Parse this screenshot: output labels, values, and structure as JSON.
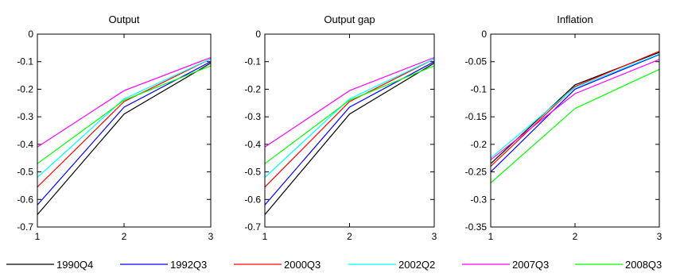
{
  "chart_data": [
    {
      "type": "line",
      "title": "Output",
      "xlabel": "",
      "ylabel": "",
      "x": [
        1,
        2,
        3
      ],
      "xlim": [
        1,
        3
      ],
      "xticks": [
        "1",
        "2",
        "3"
      ],
      "ylim": [
        -0.7,
        0
      ],
      "yticks": [
        "0",
        "-0.1",
        "-0.2",
        "-0.3",
        "-0.4",
        "-0.5",
        "-0.6",
        "-0.7"
      ],
      "grid": false,
      "series": [
        {
          "name": "1990Q4",
          "color": "#000000",
          "values": [
            -0.655,
            -0.29,
            -0.105
          ]
        },
        {
          "name": "1992Q3",
          "color": "#0000ff",
          "values": [
            -0.62,
            -0.265,
            -0.1
          ]
        },
        {
          "name": "2000Q3",
          "color": "#ff0000",
          "values": [
            -0.555,
            -0.245,
            -0.09
          ]
        },
        {
          "name": "2002Q2",
          "color": "#00ffff",
          "values": [
            -0.52,
            -0.235,
            -0.09
          ]
        },
        {
          "name": "2007Q3",
          "color": "#ff00ff",
          "values": [
            -0.41,
            -0.205,
            -0.085
          ]
        },
        {
          "name": "2008Q3",
          "color": "#00ff00",
          "values": [
            -0.47,
            -0.24,
            -0.115
          ]
        }
      ]
    },
    {
      "type": "line",
      "title": "Output gap",
      "xlabel": "",
      "ylabel": "",
      "x": [
        1,
        2,
        3
      ],
      "xlim": [
        1,
        3
      ],
      "xticks": [
        "1",
        "2",
        "3"
      ],
      "ylim": [
        -0.7,
        0
      ],
      "yticks": [
        "0",
        "-0.1",
        "-0.2",
        "-0.3",
        "-0.4",
        "-0.5",
        "-0.6",
        "-0.7"
      ],
      "grid": false,
      "series": [
        {
          "name": "1990Q4",
          "color": "#000000",
          "values": [
            -0.655,
            -0.29,
            -0.105
          ]
        },
        {
          "name": "1992Q3",
          "color": "#0000ff",
          "values": [
            -0.62,
            -0.265,
            -0.1
          ]
        },
        {
          "name": "2000Q3",
          "color": "#ff0000",
          "values": [
            -0.555,
            -0.245,
            -0.09
          ]
        },
        {
          "name": "2002Q2",
          "color": "#00ffff",
          "values": [
            -0.52,
            -0.235,
            -0.09
          ]
        },
        {
          "name": "2007Q3",
          "color": "#ff00ff",
          "values": [
            -0.41,
            -0.205,
            -0.085
          ]
        },
        {
          "name": "2008Q3",
          "color": "#00ff00",
          "values": [
            -0.47,
            -0.24,
            -0.115
          ]
        }
      ]
    },
    {
      "type": "line",
      "title": "Inflation",
      "xlabel": "",
      "ylabel": "",
      "x": [
        1,
        2,
        3
      ],
      "xlim": [
        1,
        3
      ],
      "xticks": [
        "1",
        "2",
        "3"
      ],
      "ylim": [
        -0.35,
        0
      ],
      "yticks": [
        "0",
        "-0.05",
        "-0.1",
        "-0.15",
        "-0.2",
        "-0.25",
        "-0.3",
        "-0.35"
      ],
      "grid": false,
      "series": [
        {
          "name": "1990Q4",
          "color": "#000000",
          "values": [
            -0.235,
            -0.092,
            -0.033
          ]
        },
        {
          "name": "1992Q3",
          "color": "#0000ff",
          "values": [
            -0.25,
            -0.1,
            -0.037
          ]
        },
        {
          "name": "2000Q3",
          "color": "#ff0000",
          "values": [
            -0.24,
            -0.095,
            -0.031
          ]
        },
        {
          "name": "2002Q2",
          "color": "#00ffff",
          "values": [
            -0.225,
            -0.097,
            -0.036
          ]
        },
        {
          "name": "2007Q3",
          "color": "#ff00ff",
          "values": [
            -0.228,
            -0.108,
            -0.046
          ]
        },
        {
          "name": "2008Q3",
          "color": "#00ff00",
          "values": [
            -0.27,
            -0.135,
            -0.064
          ]
        }
      ]
    }
  ],
  "legend": {
    "placement": "bottom",
    "entries": [
      {
        "label": "1990Q4",
        "color": "#000000"
      },
      {
        "label": "1992Q3",
        "color": "#0000ff"
      },
      {
        "label": "2000Q3",
        "color": "#ff0000"
      },
      {
        "label": "2002Q2",
        "color": "#00ffff"
      },
      {
        "label": "2007Q3",
        "color": "#ff00ff"
      },
      {
        "label": "2008Q3",
        "color": "#00ff00"
      }
    ]
  }
}
